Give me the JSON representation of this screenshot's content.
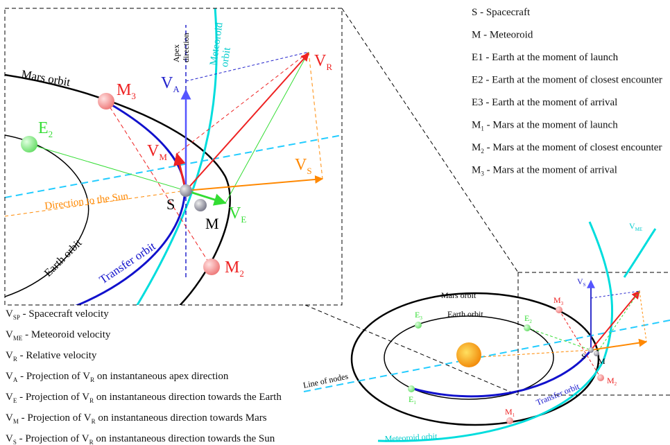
{
  "legend_top": [
    [
      {
        "text": "S - Spacecraft"
      }
    ],
    [
      {
        "text": "M - Meteoroid"
      }
    ],
    [
      {
        "text": "E1 - Earth at the moment of launch"
      }
    ],
    [
      {
        "text": "E2 - Earth at the moment of closest encounter"
      }
    ],
    [
      {
        "text": "E3 - Earth at the moment of arrival"
      }
    ],
    [
      {
        "text": "M",
        "sub": "1"
      },
      {
        "text": "- Mars at the moment of launch"
      }
    ],
    [
      {
        "text": "M",
        "sub": "2"
      },
      {
        "text": "- Mars at the moment of closest encounter"
      }
    ],
    [
      {
        "text": "M",
        "sub": "3"
      },
      {
        "text": "- Mars at the moment of arrival"
      }
    ]
  ],
  "legend_bottom": [
    [
      {
        "text": "V",
        "sub": "SP"
      },
      {
        "text": "- Spacecraft velocity"
      }
    ],
    [
      {
        "text": "V",
        "sub": "ME"
      },
      {
        "text": "- Meteoroid velocity"
      }
    ],
    [
      {
        "text": "V",
        "sub": "R"
      },
      {
        "text": "- Relative velocity"
      }
    ],
    [
      {
        "text": "V",
        "sub": "A"
      },
      {
        "text": "- Projection of V",
        "sub": "R"
      },
      {
        "text": " on instantaneous apex direction"
      }
    ],
    [
      {
        "text": "V",
        "sub": "E"
      },
      {
        "text": "- Projection of V",
        "sub": "R"
      },
      {
        "text": " on instantaneous direction towards the Earth"
      }
    ],
    [
      {
        "text": "V",
        "sub": "M"
      },
      {
        "text": "- Projection of V",
        "sub": "R"
      },
      {
        "text": " on instantaneous direction towards Mars"
      }
    ],
    [
      {
        "text": "V",
        "sub": "S"
      },
      {
        "text": "- Projection of V",
        "sub": "R"
      },
      {
        "text": " on instantaneous direction towards the Sun"
      }
    ]
  ],
  "zoom": {
    "mars_orbit": "Mars orbit",
    "earth_orbit": "Earth orbit",
    "transfer_orbit": "Transfer orbit",
    "meteoroid_orbit": [
      "Meteoroid",
      "orbit"
    ],
    "apex_direction": [
      "Apex",
      "direction"
    ],
    "direction_sun": "Direction to the Sun",
    "m3": {
      "text": "M",
      "sub": "3"
    },
    "m2": {
      "text": "M",
      "sub": "2"
    },
    "e2": {
      "text": "E",
      "sub": "2"
    },
    "va": {
      "text": "V",
      "sub": "A"
    },
    "vr": {
      "text": "V",
      "sub": "R"
    },
    "vm": {
      "text": "V",
      "sub": "M"
    },
    "vs": {
      "text": "V",
      "sub": "S"
    },
    "ve": {
      "text": "V",
      "sub": "E"
    },
    "s": "S",
    "m": "M"
  },
  "overview": {
    "mars_orbit": "Mars orbit",
    "earth_orbit": "Earth orbit",
    "transfer_orbit": "Transfer orbit",
    "meteoroid_orbit": "Meteoroid orbit",
    "line_of_nodes": "Line of nodes",
    "vme": {
      "text": "V",
      "sub": "ME"
    },
    "vs": {
      "text": "V",
      "sub": "S"
    },
    "e1": {
      "text": "E",
      "sub": "1"
    },
    "e2": {
      "text": "E",
      "sub": "2"
    },
    "e3": {
      "text": "E",
      "sub": "3"
    },
    "m1": {
      "text": "M",
      "sub": "1"
    },
    "m2": {
      "text": "M",
      "sub": "2"
    },
    "m3": {
      "text": "M",
      "sub": "3"
    },
    "s": "S",
    "m": "M"
  }
}
